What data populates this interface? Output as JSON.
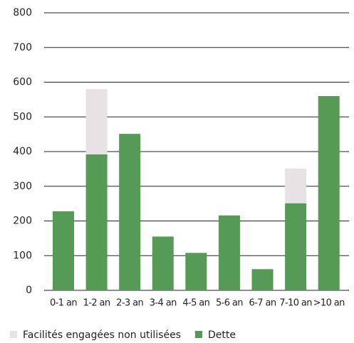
{
  "chart_data": {
    "type": "bar",
    "stacked": true,
    "categories": [
      "0-1 an",
      "1-2 an",
      "2-3 an",
      "3-4 an",
      "4-5 an",
      "5-6 an",
      "6-7 an",
      "7-10 an",
      ">10 an"
    ],
    "series": [
      {
        "name": "Dette",
        "color": "#559a55",
        "values": [
          228,
          392,
          451,
          155,
          108,
          216,
          61,
          251,
          560
        ]
      },
      {
        "name": "Facilités engagées non utilisées",
        "color": "#e8e2e4",
        "values": [
          0,
          188,
          0,
          0,
          0,
          0,
          0,
          100,
          0
        ]
      }
    ],
    "ylim": [
      0,
      800
    ],
    "yticks": [
      0,
      100,
      200,
      300,
      400,
      500,
      600,
      700,
      800
    ],
    "grid": true,
    "legend": "bottom"
  }
}
